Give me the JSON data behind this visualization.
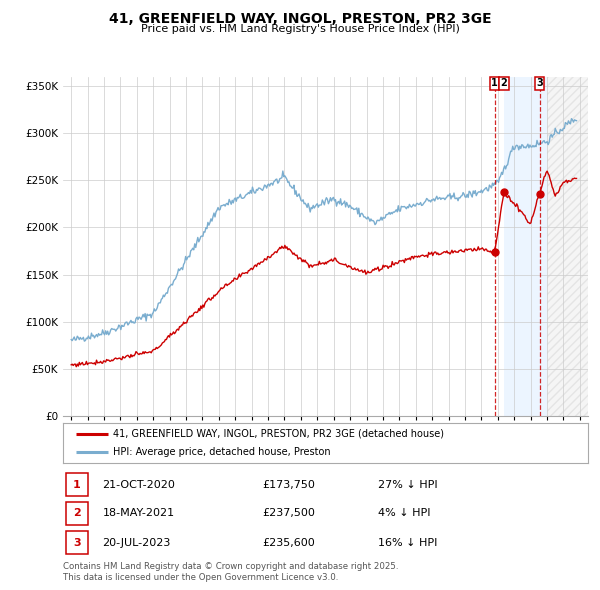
{
  "title": "41, GREENFIELD WAY, INGOL, PRESTON, PR2 3GE",
  "subtitle": "Price paid vs. HM Land Registry's House Price Index (HPI)",
  "red_line_label": "41, GREENFIELD WAY, INGOL, PRESTON, PR2 3GE (detached house)",
  "blue_line_label": "HPI: Average price, detached house, Preston",
  "footer": "Contains HM Land Registry data © Crown copyright and database right 2025.\nThis data is licensed under the Open Government Licence v3.0.",
  "transactions": [
    {
      "num": 1,
      "date": "21-OCT-2020",
      "price": 173750,
      "price_str": "£173,750",
      "hpi_diff": "27% ↓ HPI",
      "date_x": 2020.81
    },
    {
      "num": 2,
      "date": "18-MAY-2021",
      "price": 237500,
      "price_str": "£237,500",
      "hpi_diff": "4% ↓ HPI",
      "date_x": 2021.38
    },
    {
      "num": 3,
      "date": "20-JUL-2023",
      "price": 235600,
      "price_str": "£235,600",
      "hpi_diff": "16% ↓ HPI",
      "date_x": 2023.55
    }
  ],
  "vline1_x": 2020.81,
  "vline2_x": 2023.55,
  "shaded_blue_start": 2021.38,
  "shaded_blue_end": 2024.0,
  "shaded_hatch_start": 2024.0,
  "shaded_hatch_end": 2026.5,
  "ylim": [
    0,
    360000
  ],
  "xlim_start": 1994.5,
  "xlim_end": 2026.5,
  "yticks": [
    0,
    50000,
    100000,
    150000,
    200000,
    250000,
    300000,
    350000
  ],
  "xticks": [
    1995,
    1996,
    1997,
    1998,
    1999,
    2000,
    2001,
    2002,
    2003,
    2004,
    2005,
    2006,
    2007,
    2008,
    2009,
    2010,
    2011,
    2012,
    2013,
    2014,
    2015,
    2016,
    2017,
    2018,
    2019,
    2020,
    2021,
    2022,
    2023,
    2024,
    2025,
    2026
  ],
  "red_color": "#cc0000",
  "blue_color": "#7aadcf",
  "background_color": "#ffffff",
  "grid_color": "#cccccc",
  "shade_blue_color": "#ddeeff",
  "shade_hatch_color": "#e8e8e8"
}
